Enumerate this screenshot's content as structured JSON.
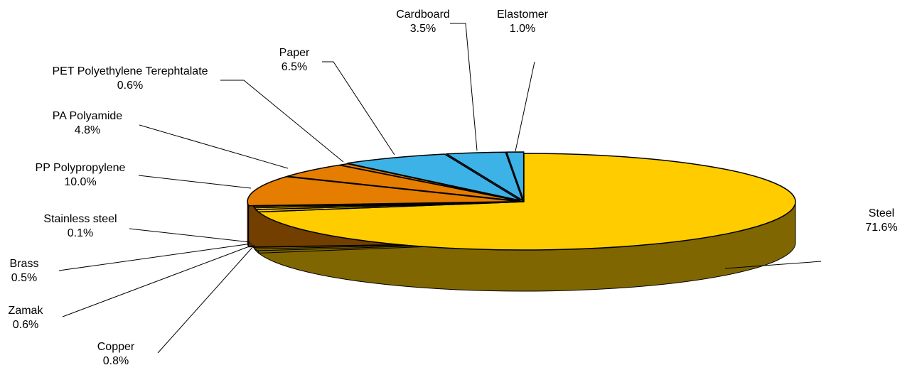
{
  "chart_data": {
    "type": "pie",
    "style": "3d-exploded",
    "title": "",
    "slices": [
      {
        "label": "Steel",
        "value": 71.6,
        "value_label": "71.6%",
        "color": "#FFCC00"
      },
      {
        "label": "Copper",
        "value": 0.8,
        "value_label": "0.8%",
        "color": "#FFCC00"
      },
      {
        "label": "Zamak",
        "value": 0.6,
        "value_label": "0.6%",
        "color": "#FFCC00"
      },
      {
        "label": "Brass",
        "value": 0.5,
        "value_label": "0.5%",
        "color": "#FFCC00"
      },
      {
        "label": "Stainless steel",
        "value": 0.1,
        "value_label": "0.1%",
        "color": "#FFCC00"
      },
      {
        "label": "PP Polypropylene",
        "value": 10.0,
        "value_label": "10.0%",
        "color": "#E47D00"
      },
      {
        "label": "PA Polyamide",
        "value": 4.8,
        "value_label": "4.8%",
        "color": "#E47D00"
      },
      {
        "label": "PET Polyethylene Terephtalate",
        "value": 0.6,
        "value_label": "0.6%",
        "color": "#E47D00"
      },
      {
        "label": "Paper",
        "value": 6.5,
        "value_label": "6.5%",
        "color": "#3DB2E6"
      },
      {
        "label": "Cardboard",
        "value": 3.5,
        "value_label": "3.5%",
        "color": "#3DB2E6"
      },
      {
        "label": "Elastomer",
        "value": 1.0,
        "value_label": "1.0%",
        "color": "#3DB2E6"
      }
    ]
  }
}
